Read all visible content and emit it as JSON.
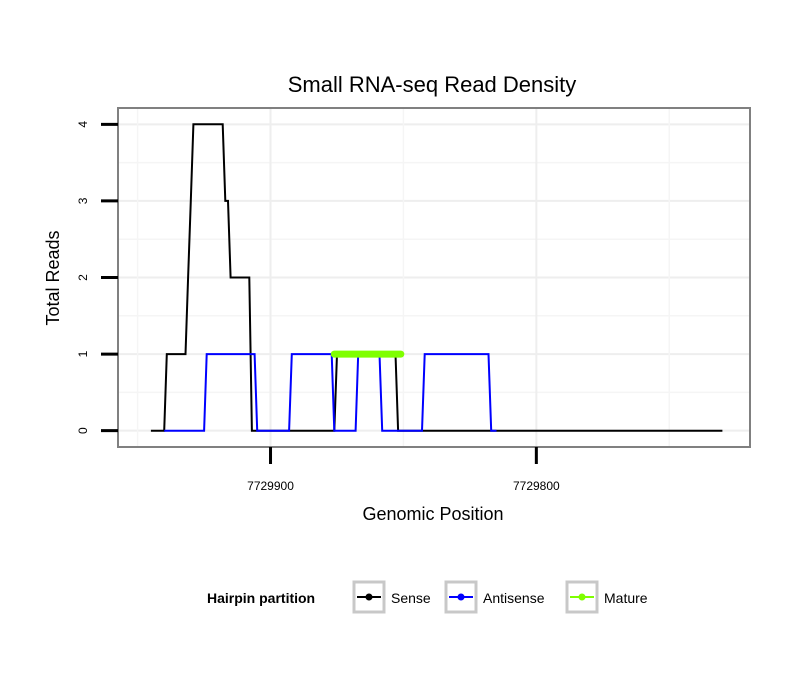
{
  "chart_data": {
    "type": "line",
    "title": "Small RNA-seq Read Density",
    "xlabel": "Genomic Position",
    "ylabel": "Total Reads",
    "x_reversed": true,
    "xlim": [
      7729957,
      7729720
    ],
    "ylim": [
      -0.2,
      4.2
    ],
    "x_ticks": [
      7729900,
      7729800
    ],
    "x_tick_labels": [
      "7729900",
      "7729800"
    ],
    "y_ticks": [
      0,
      1,
      2,
      3,
      4
    ],
    "y_tick_labels": [
      "0",
      "1",
      "2",
      "3",
      "4"
    ],
    "grid": true,
    "legend_position": "bottom",
    "legend_title": "Hairpin partition",
    "series": [
      {
        "name": "Sense",
        "color": "#000000",
        "points": [
          [
            7729945,
            0
          ],
          [
            7729940,
            0
          ],
          [
            7729939,
            1
          ],
          [
            7729932,
            1
          ],
          [
            7729931,
            2
          ],
          [
            7729930,
            3
          ],
          [
            7729929,
            4
          ],
          [
            7729918,
            4
          ],
          [
            7729917,
            3
          ],
          [
            7729916,
            3
          ],
          [
            7729915,
            2
          ],
          [
            7729908,
            2
          ],
          [
            7729907,
            0
          ],
          [
            7729876,
            0
          ],
          [
            7729875,
            1
          ],
          [
            7729853,
            1
          ],
          [
            7729852,
            0
          ],
          [
            7729850,
            0
          ],
          [
            7729735,
            0
          ],
          [
            7729730,
            0
          ]
        ]
      },
      {
        "name": "Antisense",
        "color": "#0000ff",
        "points": [
          [
            7729940,
            0
          ],
          [
            7729925,
            0
          ],
          [
            7729924,
            1
          ],
          [
            7729906,
            1
          ],
          [
            7729905,
            0
          ],
          [
            7729893,
            0
          ],
          [
            7729892,
            1
          ],
          [
            7729877,
            1
          ],
          [
            7729876,
            0
          ],
          [
            7729868,
            0
          ],
          [
            7729867,
            1
          ],
          [
            7729859,
            1
          ],
          [
            7729858,
            0
          ],
          [
            7729855,
            0
          ],
          [
            7729854,
            0
          ],
          [
            7729843,
            0
          ],
          [
            7729842,
            1
          ],
          [
            7729818,
            1
          ],
          [
            7729817,
            0
          ],
          [
            7729815,
            0
          ]
        ]
      },
      {
        "name": "Mature",
        "color": "#7fff00",
        "points": [
          [
            7729876,
            1
          ],
          [
            7729851,
            1
          ]
        ]
      }
    ]
  }
}
